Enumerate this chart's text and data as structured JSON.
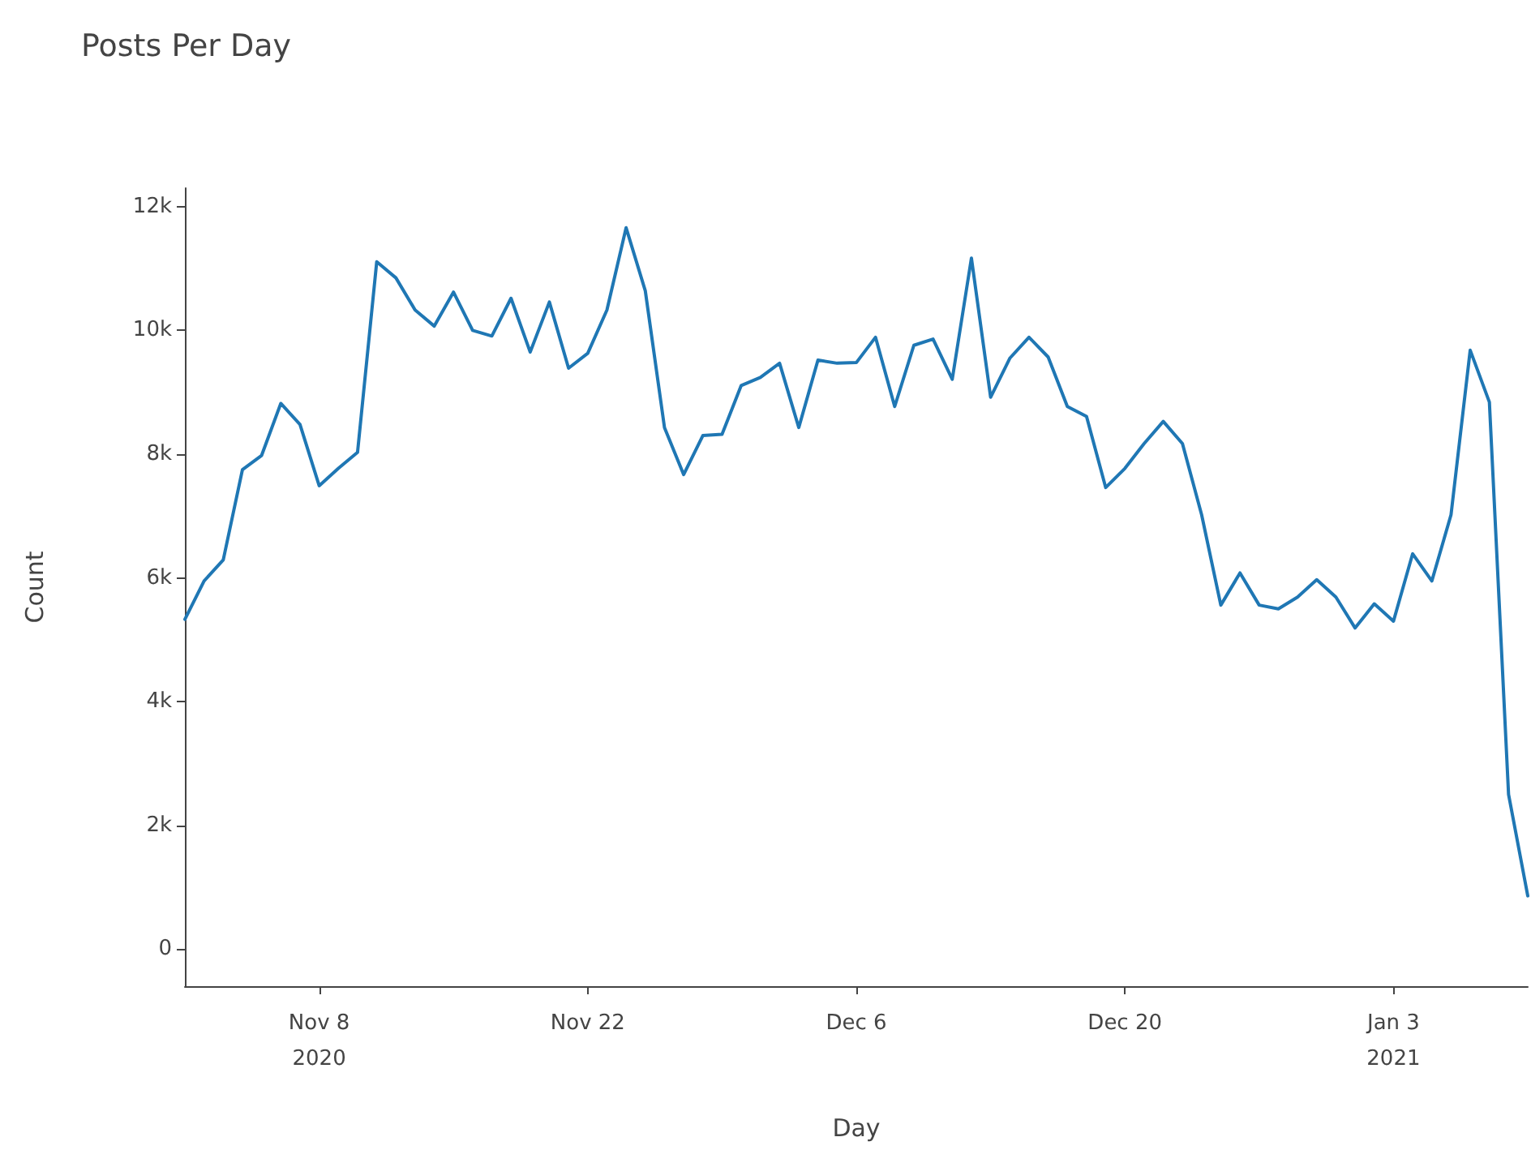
{
  "chart_data": {
    "type": "line",
    "title": "Posts Per Day",
    "xlabel": "Day",
    "ylabel": "Count",
    "x": [
      "2020-11-01",
      "2020-11-02",
      "2020-11-03",
      "2020-11-04",
      "2020-11-05",
      "2020-11-06",
      "2020-11-07",
      "2020-11-08",
      "2020-11-09",
      "2020-11-10",
      "2020-11-11",
      "2020-11-12",
      "2020-11-13",
      "2020-11-14",
      "2020-11-15",
      "2020-11-16",
      "2020-11-17",
      "2020-11-18",
      "2020-11-19",
      "2020-11-20",
      "2020-11-21",
      "2020-11-22",
      "2020-11-23",
      "2020-11-24",
      "2020-11-25",
      "2020-11-26",
      "2020-11-27",
      "2020-11-28",
      "2020-11-29",
      "2020-11-30",
      "2020-12-01",
      "2020-12-02",
      "2020-12-03",
      "2020-12-04",
      "2020-12-05",
      "2020-12-06",
      "2020-12-07",
      "2020-12-08",
      "2020-12-09",
      "2020-12-10",
      "2020-12-11",
      "2020-12-12",
      "2020-12-13",
      "2020-12-14",
      "2020-12-15",
      "2020-12-16",
      "2020-12-17",
      "2020-12-18",
      "2020-12-19",
      "2020-12-20",
      "2020-12-21",
      "2020-12-22",
      "2020-12-23",
      "2020-12-24",
      "2020-12-25",
      "2020-12-26",
      "2020-12-27",
      "2020-12-28",
      "2020-12-29",
      "2020-12-30",
      "2020-12-31",
      "2021-01-01",
      "2021-01-02",
      "2021-01-03",
      "2021-01-04",
      "2021-01-05",
      "2021-01-06",
      "2021-01-07",
      "2021-01-08",
      "2021-01-09",
      "2021-01-10"
    ],
    "series": [
      {
        "color": "#1f77b4",
        "values": [
          5330,
          5950,
          6290,
          7750,
          7980,
          8820,
          8480,
          7490,
          7770,
          8030,
          11110,
          10850,
          10330,
          10070,
          10620,
          10000,
          9910,
          10520,
          9650,
          10460,
          9390,
          9630,
          10330,
          11660,
          10640,
          8430,
          7670,
          8300,
          8320,
          9110,
          9240,
          9470,
          8430,
          9520,
          9470,
          9480,
          9890,
          8770,
          9760,
          9860,
          9210,
          11170,
          8920,
          9550,
          9890,
          9570,
          8770,
          8610,
          7460,
          7770,
          8170,
          8530,
          8170,
          7020,
          5560,
          6080,
          5560,
          5500,
          5690,
          5970,
          5690,
          5190,
          5580,
          5300,
          6390,
          5950,
          7020,
          9680,
          8840,
          2500,
          860
        ]
      }
    ],
    "xlim": [
      "2020-11-01",
      "2021-01-10"
    ],
    "xticks": [
      {
        "value": "2020-11-08",
        "label": "Nov 8\n2020"
      },
      {
        "value": "2020-11-22",
        "label": "Nov 22"
      },
      {
        "value": "2020-12-06",
        "label": "Dec 6"
      },
      {
        "value": "2020-12-20",
        "label": "Dec 20"
      },
      {
        "value": "2021-01-03",
        "label": "Jan 3\n2021"
      }
    ],
    "ylim": [
      -600,
      12300
    ],
    "yticks": [
      0,
      {
        "value": 2000,
        "label": "2k"
      },
      {
        "value": 4000,
        "label": "4k"
      },
      {
        "value": 6000,
        "label": "6k"
      },
      {
        "value": 8000,
        "label": "8k"
      },
      {
        "value": 10000,
        "label": "10k"
      },
      {
        "value": 12000,
        "label": "12k"
      }
    ],
    "marker": "none",
    "line_style": "solid"
  }
}
